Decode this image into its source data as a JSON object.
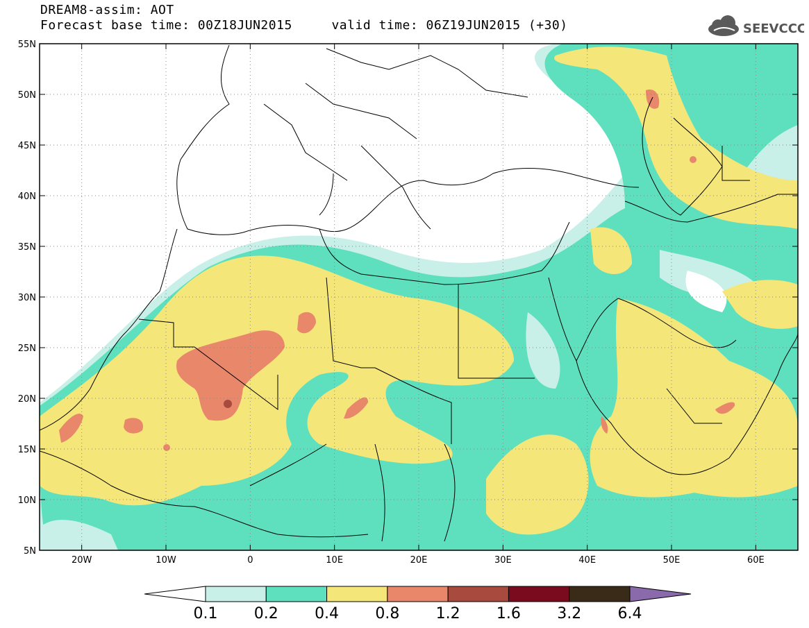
{
  "header": {
    "line1": "DREAM8-assim: AOT",
    "line2": "Forecast base time: 00Z18JUN2015     valid time: 06Z19JUN2015 (+30)"
  },
  "logo": {
    "text": "SEEVCCC",
    "icon": "cloud-icon"
  },
  "map": {
    "lon_range": [
      -25,
      65
    ],
    "lat_range": [
      5,
      55
    ],
    "y_ticks": [
      "55N",
      "50N",
      "45N",
      "40N",
      "35N",
      "30N",
      "25N",
      "20N",
      "15N",
      "10N",
      "5N"
    ],
    "x_ticks": [
      "20W",
      "10W",
      "0",
      "10E",
      "20E",
      "30E",
      "40E",
      "50E",
      "60E"
    ],
    "grid": "dotted"
  },
  "colorbar": {
    "labels": [
      "0.1",
      "0.2",
      "0.4",
      "0.8",
      "1.2",
      "1.6",
      "3.2",
      "6.4"
    ],
    "colors": [
      "#ffffff",
      "#c8f0e8",
      "#5ee0be",
      "#f5e67a",
      "#e8876a",
      "#a84a3e",
      "#7a0a1e",
      "#3a2a18",
      "#8a6aaa"
    ]
  }
}
